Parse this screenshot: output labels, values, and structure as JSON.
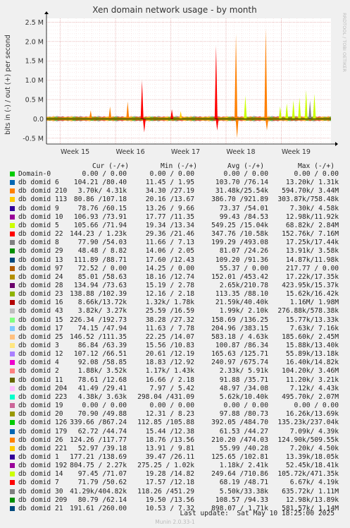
{
  "title": "Xen domain network usage - by month",
  "ylabel": "bits in (-) / out (+) per second",
  "watermark": "RRDTOOL / TOBI OETIKER",
  "columns": {
    "cur": "Cur (-/+)",
    "min": "Min (-/+)",
    "avg": "Avg (-/+)",
    "max": "Max (-/+)"
  },
  "last_update": "Last update:  Sat May 10 18:25:00 2025",
  "footer": "Munin 2.0.33-1",
  "colors": {
    "background": "#f0f0f0",
    "plot_bg": "#ffffff",
    "grid_minor": "#f0c8c8",
    "grid_major": "#e08080"
  },
  "legend": [
    {
      "name": "Domain-0",
      "color": "#00cc00",
      "cur": "0.00 / 0.00",
      "min": "0.00 / 0.00",
      "avg": "0.00 / 0.00",
      "max": "0.00 / 0.00"
    },
    {
      "name": "db domid 6",
      "color": "#0066b3",
      "cur": "104.21 /80.40",
      "min": "11.45 / 1.95",
      "avg": "103.70 /76.14",
      "max": "13.20k/ 1.31k"
    },
    {
      "name": "db domid 210",
      "color": "#ff8000",
      "cur": "3.70k/ 4.31k",
      "min": "34.30 /27.19",
      "avg": "31.48k/25.54k",
      "max": "594.70k/ 3.44M"
    },
    {
      "name": "db domid 113",
      "color": "#ffcc00",
      "cur": "80.86 /107.18",
      "min": "20.16 /13.67",
      "avg": "386.70 /921.89",
      "max": "303.87k/758.48k"
    },
    {
      "name": "db domid 9",
      "color": "#330099",
      "cur": "78.76 /60.15",
      "min": "13.26 / 9.66",
      "avg": "73.37 /54.01",
      "max": "7.30k/ 4.58k"
    },
    {
      "name": "db domid 10",
      "color": "#990099",
      "cur": "106.93 /73.91",
      "min": "17.77 /11.35",
      "avg": "99.43 /84.53",
      "max": "12.98k/11.92k"
    },
    {
      "name": "db domid 5",
      "color": "#ccff00",
      "cur": "105.66 /71.94",
      "min": "19.34 /13.34",
      "avg": "549.25 /15.04k",
      "max": "68.82k/ 2.84M"
    },
    {
      "name": "db domid 22",
      "color": "#ff0000",
      "cur": "144.23 / 1.23k",
      "min": "29.36 /21.46",
      "avg": "347.76 /10.58k",
      "max": "152.76k/ 7.16M"
    },
    {
      "name": "db domid 8",
      "color": "#808080",
      "cur": "77.90 /54.03",
      "min": "11.66 / 7.13",
      "avg": "199.29 /493.08",
      "max": "17.25k/17.44k"
    },
    {
      "name": "db domid 29",
      "color": "#008f00",
      "cur": "48.48 / 8.82",
      "min": "14.06 / 2.05",
      "avg": "81.07 /24.26",
      "max": "13.91k/ 3.58k"
    },
    {
      "name": "db domid 13",
      "color": "#00487d",
      "cur": "111.89 /88.71",
      "min": "17.60 /12.43",
      "avg": "109.20 /91.36",
      "max": "14.87k/11.98k"
    },
    {
      "name": "db domid 97",
      "color": "#b35a00",
      "cur": "72.52 / 0.00",
      "min": "14.25 / 0.00",
      "avg": "55.37 / 0.00",
      "max": "217.77 / 0.00"
    },
    {
      "name": "db domid 24",
      "color": "#b38f00",
      "cur": "85.01 /58.63",
      "min": "18.16 /12.74",
      "avg": "152.01 /453.42",
      "max": "17.22k/17.35k"
    },
    {
      "name": "db domid 28",
      "color": "#6b006b",
      "cur": "134.94 /73.63",
      "min": "15.19 / 2.78",
      "avg": "2.65k/210.78",
      "max": "423.95k/15.37k"
    },
    {
      "name": "db domid 23",
      "color": "#8fb300",
      "cur": "138.88 /102.39",
      "min": "12.16 / 2.18",
      "avg": "113.35 /88.10",
      "max": "15.62k/16.42k"
    },
    {
      "name": "db domid 16",
      "color": "#b30000",
      "cur": "8.66k/13.72k",
      "min": "1.32k/ 1.78k",
      "avg": "21.59k/40.40k",
      "max": "1.16M/ 1.98M"
    },
    {
      "name": "db domid 43",
      "color": "#bebebe",
      "cur": "3.82k/ 3.27k",
      "min": "25.59 /16.59",
      "avg": "1.99k/ 2.10k",
      "max": "276.88k/578.38k"
    },
    {
      "name": "db domid 15",
      "color": "#80ff80",
      "cur": "226.34 /192.73",
      "min": "38.28 /27.32",
      "avg": "158.69 /136.25",
      "max": "15.77k/13.33k"
    },
    {
      "name": "db domid 17",
      "color": "#80c9ff",
      "cur": "74.15 /47.94",
      "min": "11.63 / 7.78",
      "avg": "204.96 /383.15",
      "max": "7.63k/ 7.16k"
    },
    {
      "name": "db domid 25",
      "color": "#ffc080",
      "cur": "146.52 /111.35",
      "min": "22.25 /14.07",
      "avg": "583.18 / 4.63k",
      "max": "185.60k/ 2.45M"
    },
    {
      "name": "db domid 3",
      "color": "#ffe680",
      "cur": "86.84 /63.39",
      "min": "15.56 /10.83",
      "avg": "100.87 /86.34",
      "max": "15.88k/13.40k"
    },
    {
      "name": "db domid 12",
      "color": "#aa80ff",
      "cur": "107.12 /66.51",
      "min": "20.61 /12.19",
      "avg": "165.63 /125.71",
      "max": "55.89k/13.18k"
    },
    {
      "name": "db domid 4",
      "color": "#ee00cc",
      "cur": "92.08 /58.85",
      "min": "18.83 /12.92",
      "avg": "240.97 /675.74",
      "max": "16.40k/14.82k"
    },
    {
      "name": "db domid 2",
      "color": "#ff8080",
      "cur": "1.88k/ 3.52k",
      "min": "1.17k/ 1.43k",
      "avg": "2.33k/ 5.91k",
      "max": "104.20k/ 3.46M"
    },
    {
      "name": "db domid 11",
      "color": "#666600",
      "cur": "78.61 /12.68",
      "min": "16.66 / 2.18",
      "avg": "91.88 /35.71",
      "max": "11.20k/ 3.21k"
    },
    {
      "name": "db domid 204",
      "color": "#ffbfff",
      "cur": "41.49 /29.41",
      "min": "7.97 / 5.42",
      "avg": "48.97 /34.08",
      "max": "7.12k/ 4.43k"
    },
    {
      "name": "db domid 223",
      "color": "#00ffcc",
      "cur": "4.38k/ 3.63k",
      "min": "298.04 /431.09",
      "avg": "5.62k/10.40k",
      "max": "495.70k/ 2.07M"
    },
    {
      "name": "db domid 19",
      "color": "#cc6699",
      "cur": "0.00 / 0.00",
      "min": "0.00 / 0.00",
      "avg": "0.00 / 0.00",
      "max": "0.00 / 0.00"
    },
    {
      "name": "db domid 20",
      "color": "#999900",
      "cur": "70.90 /49.88",
      "min": "12.31 / 8.23",
      "avg": "97.88 /80.73",
      "max": "16.26k/13.69k"
    },
    {
      "name": "db domid 126",
      "color": "#00cc00",
      "cur": "339.66 /867.24",
      "min": "112.85 /105.88",
      "avg": "392.05 /484.70",
      "max": "135.23k/237.04k"
    },
    {
      "name": "db domid 179",
      "color": "#0066b3",
      "cur": "62.72 /44.74",
      "min": "15.44 /12.38",
      "avg": "61.53 /44.27",
      "max": "7.09k/ 4.39k"
    },
    {
      "name": "db domid 26",
      "color": "#ff8000",
      "cur": "124.26 /117.77",
      "min": "18.76 /13.56",
      "avg": "210.20 /474.03",
      "max": "124.90k/509.55k"
    },
    {
      "name": "db domid 221",
      "color": "#ffcc00",
      "cur": "52.97 /39.18",
      "min": "13.91 / 9.81",
      "avg": "55.99 /40.28",
      "max": "7.20k/ 4.50k"
    },
    {
      "name": "db domid 1",
      "color": "#330099",
      "cur": "177.21 /138.69",
      "min": "39.47 /26.11",
      "avg": "125.65 /102.81",
      "max": "13.39k/18.05k"
    },
    {
      "name": "db domid 192",
      "color": "#990099",
      "cur": "804.75 / 2.27k",
      "min": "275.25 / 1.02k",
      "avg": "1.18k/ 2.41k",
      "max": "52.45k/18.41k"
    },
    {
      "name": "db domid 14",
      "color": "#ccff00",
      "cur": "97.45 /71.07",
      "min": "19.28 /14.82",
      "avg": "249.64 /710.86",
      "max": "105.72k/471.35k"
    },
    {
      "name": "db domid 7",
      "color": "#ff0000",
      "cur": "71.79 /50.62",
      "min": "17.57 /12.18",
      "avg": "68.19 /48.71",
      "max": "6.67k/ 4.19k"
    },
    {
      "name": "db domid 30",
      "color": "#808080",
      "cur": "41.29k/404.82k",
      "min": "118.26 /451.29",
      "avg": "5.50k/33.38k",
      "max": "635.72k/ 1.11M"
    },
    {
      "name": "db domid 209",
      "color": "#008f00",
      "cur": "80.79 /62.14",
      "min": "19.50 /13.56",
      "avg": "108.57 /94.33",
      "max": "12.98k/13.89k"
    },
    {
      "name": "db domid 21",
      "color": "#00487d",
      "cur": "191.61 /260.00",
      "min": "10.53 / 7.32",
      "avg": "898.07 / 1.71k",
      "max": "581.57k/ 1.14M"
    }
  ],
  "chart_data": {
    "type": "area",
    "title": "Xen domain network usage - by month",
    "ylabel": "bits in (-) / out (+) per second",
    "x_ticks": [
      "Week 15",
      "Week 16",
      "Week 17",
      "Week 18",
      "Week 19"
    ],
    "y_ticks": [
      "2.5 M",
      "2.0 M",
      "1.5 M",
      "1.0 M",
      "0.5 M",
      "0.0",
      "-0.5 M"
    ],
    "ylim": [
      -0.65,
      2.6
    ],
    "y_unit": "M bits/s",
    "grid": true,
    "spikes": [
      {
        "week": 15.55,
        "value": 0.22,
        "color": "#ff8000"
      },
      {
        "week": 15.9,
        "value": 0.32,
        "color": "#ff8000"
      },
      {
        "week": 16.22,
        "value": 0.45,
        "color": "#ff8000"
      },
      {
        "week": 16.48,
        "value": 1.0,
        "color": "#ff0000"
      },
      {
        "week": 16.52,
        "value": -0.35,
        "color": "#ff0000"
      },
      {
        "week": 17.02,
        "value": 0.25,
        "color": "#ff0000"
      },
      {
        "week": 17.18,
        "value": 0.2,
        "color": "#ffcc00"
      },
      {
        "week": 17.82,
        "value": 1.9,
        "color": "#ff0000"
      },
      {
        "week": 17.84,
        "value": -0.3,
        "color": "#ff0000"
      },
      {
        "week": 18.18,
        "value": 2.2,
        "color": "#ff8000"
      },
      {
        "week": 18.2,
        "value": -0.5,
        "color": "#ff8000"
      },
      {
        "week": 18.35,
        "value": 0.6,
        "color": "#ccff00"
      },
      {
        "week": 18.72,
        "value": 2.35,
        "color": "#ff8000"
      },
      {
        "week": 18.74,
        "value": -0.3,
        "color": "#ff8000"
      },
      {
        "week": 18.98,
        "value": 0.32,
        "color": "#ccff00"
      },
      {
        "week": 19.1,
        "value": 0.4,
        "color": "#ccff00"
      },
      {
        "week": 19.22,
        "value": 0.48,
        "color": "#ccff00"
      },
      {
        "week": 19.33,
        "value": 0.55,
        "color": "#ccff00"
      },
      {
        "week": 19.45,
        "value": 0.75,
        "color": "#ccff00"
      },
      {
        "week": 19.52,
        "value": 0.48,
        "color": "#808080"
      },
      {
        "week": 19.6,
        "value": 0.65,
        "color": "#ccff00"
      }
    ]
  }
}
